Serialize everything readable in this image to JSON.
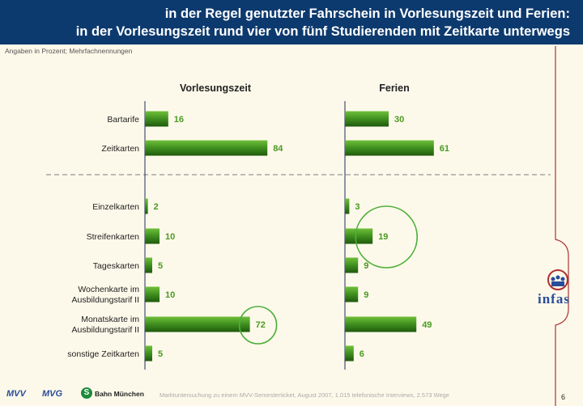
{
  "header": {
    "title_line1": "in der Regel genutzter Fahrschein in Vorlesungszeit und Ferien:",
    "title_line2": "in der Vorlesungszeit rund vier von fünf Studierenden mit Zeitkarte unterwegs"
  },
  "subnote": "Angaben in Prozent; Mehrfachnennungen",
  "chart_data": {
    "type": "bar",
    "orientation": "horizontal",
    "categories": [
      "Bartarife",
      "Zeitkarten",
      "Einzelkarten",
      "Streifenkarten",
      "Tageskarten",
      "Wochenkarte im Ausbildungstarif II",
      "Monatskarte im Ausbildungstarif II",
      "sonstige Zeitkarten"
    ],
    "category_lines": [
      [
        "Bartarife"
      ],
      [
        "Zeitkarten"
      ],
      [
        "Einzelkarten"
      ],
      [
        "Streifenkarten"
      ],
      [
        "Tageskarten"
      ],
      [
        "Wochenkarte im",
        "Ausbildungstarif II"
      ],
      [
        "Monatskarte im",
        "Ausbildungstarif II"
      ],
      [
        "sonstige Zeitkarten"
      ]
    ],
    "series": [
      {
        "name": "Vorlesungszeit",
        "values": [
          16,
          84,
          2,
          10,
          5,
          10,
          72,
          5
        ]
      },
      {
        "name": "Ferien",
        "values": [
          30,
          61,
          3,
          19,
          9,
          9,
          49,
          6
        ]
      }
    ],
    "highlights": [
      {
        "series": 0,
        "category": 6
      },
      {
        "series": 1,
        "category": 3
      }
    ],
    "colors": {
      "bar": "#3f8f1f",
      "bar_dark": "#1f5a0c",
      "label": "#4a9a22",
      "axis": "#1d2d5a",
      "highlight": "#4caf3a"
    }
  },
  "footer": {
    "note": "Marktuntersuchung zu einem MVV-Semesterticket, August 2007, 1.015 telefonische Interviews, 2.573 Wege",
    "page": "6",
    "logos": {
      "mvv": "MVV",
      "mvg": "MVG",
      "sbahn_symbol": "S",
      "sbahn_text": "Bahn München",
      "infas": "infas"
    }
  }
}
